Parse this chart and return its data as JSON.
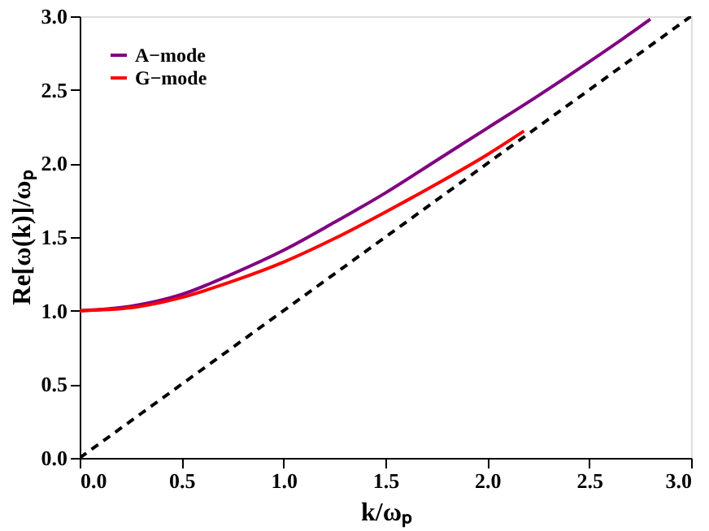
{
  "chart_data": {
    "type": "line",
    "xlabel": "k/ωₚ",
    "ylabel": "Re[ω(k)]/ωₚ",
    "xlim": [
      0,
      3
    ],
    "ylim": [
      0,
      3
    ],
    "xticks": [
      {
        "value": 0,
        "label": "0.0"
      },
      {
        "value": 0.5,
        "label": "0.5"
      },
      {
        "value": 1,
        "label": "1.0"
      },
      {
        "value": 1.5,
        "label": "1.5"
      },
      {
        "value": 2,
        "label": "2.0"
      },
      {
        "value": 2.5,
        "label": "2.5"
      },
      {
        "value": 3,
        "label": "3.0"
      }
    ],
    "yticks": [
      {
        "value": 0,
        "label": "0.0"
      },
      {
        "value": 0.5,
        "label": "0.5"
      },
      {
        "value": 1,
        "label": "1.0"
      },
      {
        "value": 1.5,
        "label": "1.5"
      },
      {
        "value": 2,
        "label": "2.0"
      },
      {
        "value": 2.5,
        "label": "2.5"
      },
      {
        "value": 3,
        "label": "3.0"
      }
    ],
    "grid": false,
    "legend": "top left",
    "marker": "none",
    "series": [
      {
        "name": "A−mode",
        "color": "#800080",
        "line_style": "solid",
        "x": [
          0,
          0.25,
          0.5,
          0.75,
          1,
          1.25,
          1.5,
          1.75,
          2,
          2.25,
          2.5,
          2.75,
          2.8
        ],
        "values": [
          1.0,
          1.03,
          1.11,
          1.25,
          1.41,
          1.6,
          1.8,
          2.02,
          2.24,
          2.46,
          2.69,
          2.93,
          2.98
        ]
      },
      {
        "name": "G−mode",
        "color": "#ff0000",
        "line_style": "solid",
        "x": [
          0,
          0.25,
          0.5,
          0.75,
          1,
          1.25,
          1.5,
          1.75,
          2,
          2.18
        ],
        "values": [
          1.0,
          1.02,
          1.09,
          1.2,
          1.33,
          1.49,
          1.67,
          1.86,
          2.06,
          2.22
        ]
      },
      {
        "color": "#000000",
        "line_style": "dashed",
        "x": [
          0,
          3
        ],
        "values": [
          0,
          3
        ]
      }
    ]
  }
}
